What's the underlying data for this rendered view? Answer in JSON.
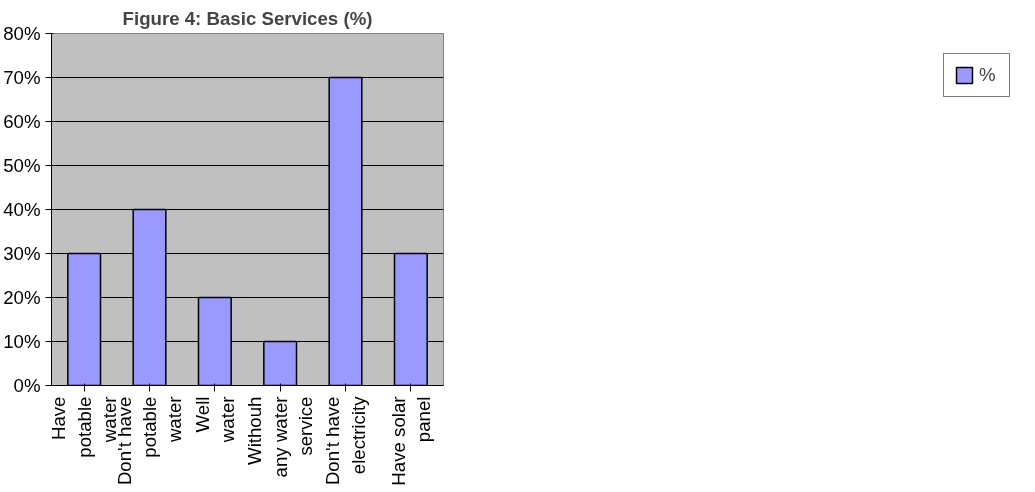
{
  "chart_data": {
    "type": "bar",
    "title": "Figure 4: Basic Services (%)",
    "categories": [
      "Have\npotable\nwater",
      "Don't have\npotable\nwater",
      "Well\nwater",
      "Withouh\nany water\nservice",
      "Don't have\nelectricity",
      "Have solar\npanel"
    ],
    "series": [
      {
        "name": "%",
        "color": "#9999ff",
        "values": [
          30,
          40,
          20,
          10,
          70,
          30
        ]
      }
    ],
    "ylim": [
      0,
      80
    ],
    "yticks": [
      {
        "value": 0,
        "label": "0%"
      },
      {
        "value": 10,
        "label": "10%"
      },
      {
        "value": 20,
        "label": "20%"
      },
      {
        "value": 30,
        "label": "30%"
      },
      {
        "value": 40,
        "label": "40%"
      },
      {
        "value": 50,
        "label": "50%"
      },
      {
        "value": 60,
        "label": "60%"
      },
      {
        "value": 70,
        "label": "70%"
      },
      {
        "value": 80,
        "label": "80%"
      }
    ],
    "grid": "y",
    "legend": "right"
  }
}
